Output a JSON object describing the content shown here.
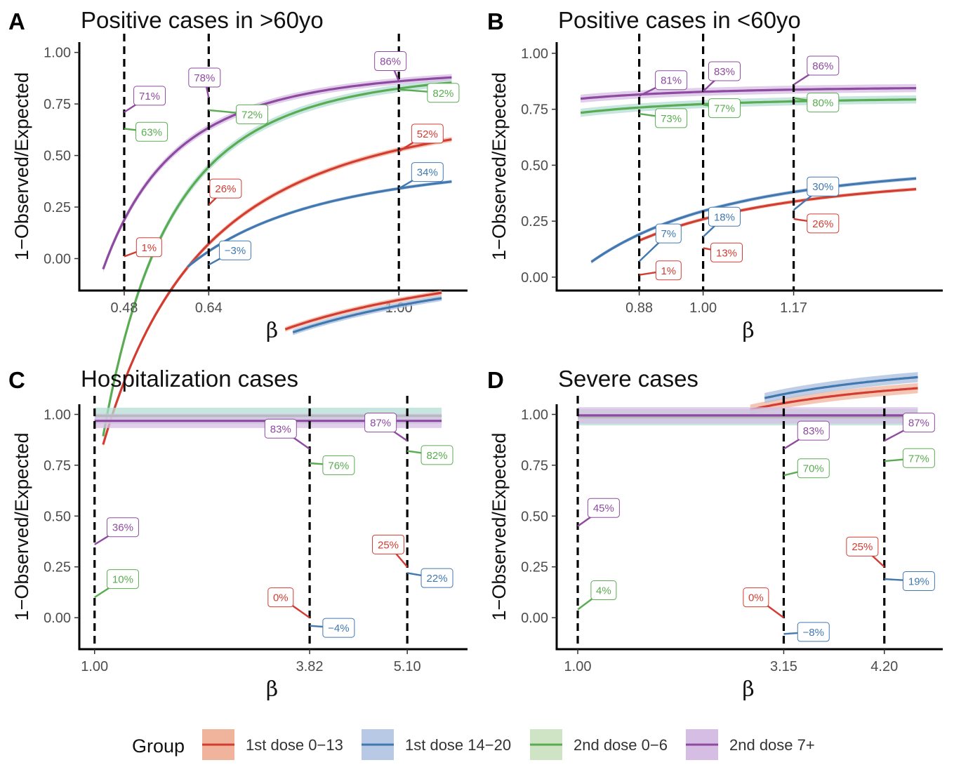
{
  "colors": {
    "g1": "#d23c32",
    "g2": "#4178b0",
    "g3": "#5aac52",
    "g4": "#8e4aa0",
    "band1": "#f0b49c",
    "band2": "#a8bedd",
    "band3": "#b3ded4",
    "band4": "#d6bde3"
  },
  "legend": {
    "title": "Group",
    "items": [
      {
        "name": "1st dose 0−13",
        "line": "#d23c32",
        "fill": "#f0b49c"
      },
      {
        "name": "1st dose 14−20",
        "line": "#4178b0",
        "fill": "#b7c9e4"
      },
      {
        "name": "2nd dose 0−6",
        "line": "#5aac52",
        "fill": "#cfe4c4"
      },
      {
        "name": "2nd dose 7+",
        "line": "#8e4aa0",
        "fill": "#d6bde3"
      }
    ]
  },
  "chart_data": [
    {
      "type": "line",
      "letter": "A",
      "title": "Positive cases in >60yo",
      "xlabel": "β",
      "ylabel": "1−Observed/Expected",
      "xlim": [
        0.395,
        1.13
      ],
      "ylim": [
        -0.155,
        1.05
      ],
      "xticks": [
        0.48,
        0.64,
        1.0
      ],
      "xtick_labels": [
        "0.48",
        "0.64",
        "1.00"
      ],
      "yticks": [
        0,
        0.25,
        0.5,
        0.75,
        1.0
      ],
      "ytick_labels": [
        "0.00",
        "0.25",
        "0.50",
        "0.75",
        "1.00"
      ],
      "vlines": [
        0.48,
        0.64,
        1.0
      ],
      "series": [
        {
          "group": 0,
          "curve": {
            "a": 0.528,
            "b": 0.255,
            "c": 2.3
          },
          "x_range": [
            0.44,
            1.1
          ],
          "band": 0.012
        },
        {
          "group": 1,
          "curve": {
            "a": 0.34,
            "b": 0.17,
            "c": 2.3
          },
          "x_range": [
            0.6,
            1.1
          ],
          "band": 0.008
        },
        {
          "group": 2,
          "curve": {
            "a": 0.825,
            "b": 0.101,
            "c": 3.5
          },
          "x_range": [
            0.44,
            1.1
          ],
          "band": 0.018
        },
        {
          "group": 3,
          "curve": {
            "a": 0.86,
            "b": 0.071,
            "c": 3.2
          },
          "x_range": [
            0.44,
            1.1
          ],
          "band": 0.016
        }
      ],
      "labels": [
        {
          "text": "1%",
          "group": 0,
          "x": 0.48,
          "y": 0.01,
          "lx": 0.527,
          "ly": 0.055
        },
        {
          "text": "26%",
          "group": 0,
          "x": 0.64,
          "y": 0.26,
          "lx": 0.672,
          "ly": 0.34
        },
        {
          "text": "52%",
          "group": 0,
          "x": 1.0,
          "y": 0.52,
          "lx": 1.054,
          "ly": 0.606
        },
        {
          "text": "−3%",
          "group": 1,
          "x": 0.64,
          "y": -0.03,
          "lx": 0.69,
          "ly": 0.04
        },
        {
          "text": "34%",
          "group": 1,
          "x": 1.0,
          "y": 0.34,
          "lx": 1.054,
          "ly": 0.42
        },
        {
          "text": "63%",
          "group": 2,
          "x": 0.48,
          "y": 0.63,
          "lx": 0.532,
          "ly": 0.615
        },
        {
          "text": "72%",
          "group": 2,
          "x": 0.64,
          "y": 0.72,
          "lx": 0.722,
          "ly": 0.7
        },
        {
          "text": "82%",
          "group": 2,
          "x": 1.0,
          "y": 0.82,
          "lx": 1.084,
          "ly": 0.804
        },
        {
          "text": "71%",
          "group": 3,
          "x": 0.48,
          "y": 0.71,
          "lx": 0.528,
          "ly": 0.79
        },
        {
          "text": "78%",
          "group": 3,
          "x": 0.64,
          "y": 0.78,
          "lx": 0.632,
          "ly": 0.878
        },
        {
          "text": "86%",
          "group": 3,
          "x": 1.0,
          "y": 0.86,
          "lx": 0.984,
          "ly": 0.958
        }
      ]
    },
    {
      "type": "line",
      "letter": "B",
      "title": "Positive cases in <60yo",
      "xlabel": "β",
      "ylabel": "1−Observed/Expected",
      "xlim": [
        0.725,
        1.45
      ],
      "ylim": [
        -0.06,
        1.05
      ],
      "xticks": [
        0.88,
        1.0,
        1.17
      ],
      "xtick_labels": [
        "0.88",
        "1.00",
        "1.17"
      ],
      "yticks": [
        0,
        0.25,
        0.5,
        0.75,
        1.0
      ],
      "ytick_labels": [
        "0.00",
        "0.25",
        "0.50",
        "0.75",
        "1.00"
      ],
      "vlines": [
        0.88,
        1.0,
        1.17
      ],
      "series": [
        {
          "group": 0,
          "curve": {
            "a": 0.259,
            "b": 0.217,
            "c": 2.86
          },
          "x_range": [
            0.88,
            1.4
          ],
          "band": 0.008
        },
        {
          "group": 1,
          "curve": {
            "a": 0.295,
            "b": 0.236,
            "c": 2.86
          },
          "x_range": [
            0.79,
            1.4
          ],
          "band": 0.008
        },
        {
          "group": 2,
          "curve": {
            "a": 0.773,
            "b": 0.0326,
            "c": 3.0
          },
          "x_range": [
            0.77,
            1.4
          ],
          "band": 0.018
        },
        {
          "group": 3,
          "curve": {
            "a": 0.828,
            "b": 0.0258,
            "c": 3.0
          },
          "x_range": [
            0.77,
            1.4
          ],
          "band": 0.018
        }
      ],
      "labels": [
        {
          "text": "1%",
          "group": 0,
          "x": 0.88,
          "y": 0.01,
          "lx": 0.935,
          "ly": 0.03
        },
        {
          "text": "13%",
          "group": 0,
          "x": 1.0,
          "y": 0.13,
          "lx": 1.044,
          "ly": 0.11
        },
        {
          "text": "26%",
          "group": 0,
          "x": 1.17,
          "y": 0.26,
          "lx": 1.225,
          "ly": 0.24
        },
        {
          "text": "7%",
          "group": 1,
          "x": 0.88,
          "y": 0.07,
          "lx": 0.935,
          "ly": 0.195
        },
        {
          "text": "18%",
          "group": 1,
          "x": 1.0,
          "y": 0.18,
          "lx": 1.04,
          "ly": 0.27
        },
        {
          "text": "30%",
          "group": 1,
          "x": 1.17,
          "y": 0.3,
          "lx": 1.225,
          "ly": 0.405
        },
        {
          "text": "73%",
          "group": 2,
          "x": 0.88,
          "y": 0.73,
          "lx": 0.94,
          "ly": 0.71
        },
        {
          "text": "77%",
          "group": 2,
          "x": 1.0,
          "y": 0.77,
          "lx": 1.04,
          "ly": 0.755
        },
        {
          "text": "80%",
          "group": 2,
          "x": 1.17,
          "y": 0.8,
          "lx": 1.225,
          "ly": 0.78
        },
        {
          "text": "81%",
          "group": 3,
          "x": 0.88,
          "y": 0.81,
          "lx": 0.94,
          "ly": 0.88
        },
        {
          "text": "83%",
          "group": 3,
          "x": 1.0,
          "y": 0.83,
          "lx": 1.04,
          "ly": 0.92
        },
        {
          "text": "86%",
          "group": 3,
          "x": 1.17,
          "y": 0.86,
          "lx": 1.225,
          "ly": 0.945
        }
      ]
    },
    {
      "type": "line",
      "letter": "C",
      "title": "Hospitalization cases",
      "xlabel": "β",
      "ylabel": "1−Observed/Expected",
      "xlim": [
        0.8,
        5.89
      ],
      "ylim": [
        -0.155,
        1.05
      ],
      "xticks": [
        1.0,
        3.82,
        5.1
      ],
      "xtick_labels": [
        "1.00",
        "3.82",
        "5.10"
      ],
      "yticks": [
        0,
        0.25,
        0.5,
        0.75,
        1.0
      ],
      "ytick_labels": [
        "0.00",
        "0.25",
        "0.50",
        "0.75",
        "1.00"
      ],
      "vlines": [
        1.0,
        3.82,
        5.1
      ],
      "series": [
        {
          "group": 0,
          "curve": {
            "a": 0.415,
            "b": 1.586,
            "c": 0.8
          },
          "x_range": [
            3.5,
            5.55
          ],
          "band": 0.012
        },
        {
          "group": 1,
          "curve": {
            "a": 0.378,
            "b": 1.6,
            "c": 0.8
          },
          "x_range": [
            3.6,
            5.55
          ],
          "band": 0.014
        },
        {
          "group": 2,
          "curve": {
            "a": 0.993,
            "b": 0.89,
            "c": 0.0
          },
          "x_range": [
            1.0,
            5.55
          ],
          "band": 0.04
        },
        {
          "group": 3,
          "curve": {
            "a": 0.968,
            "b": 0.608,
            "c": 0.0
          },
          "x_range": [
            1.0,
            5.55
          ],
          "band": 0.035
        }
      ],
      "labels": [
        {
          "text": "0%",
          "group": 0,
          "x": 3.82,
          "y": 0.0,
          "lx": 3.44,
          "ly": 0.1
        },
        {
          "text": "25%",
          "group": 0,
          "x": 5.1,
          "y": 0.25,
          "lx": 4.85,
          "ly": 0.36
        },
        {
          "text": "−4%",
          "group": 1,
          "x": 3.82,
          "y": -0.04,
          "lx": 4.2,
          "ly": -0.05
        },
        {
          "text": "22%",
          "group": 1,
          "x": 5.1,
          "y": 0.22,
          "lx": 5.49,
          "ly": 0.195
        },
        {
          "text": "10%",
          "group": 2,
          "x": 1.0,
          "y": 0.1,
          "lx": 1.37,
          "ly": 0.19
        },
        {
          "text": "76%",
          "group": 2,
          "x": 3.82,
          "y": 0.76,
          "lx": 4.2,
          "ly": 0.75
        },
        {
          "text": "82%",
          "group": 2,
          "x": 5.1,
          "y": 0.82,
          "lx": 5.49,
          "ly": 0.8
        },
        {
          "text": "36%",
          "group": 3,
          "x": 1.0,
          "y": 0.36,
          "lx": 1.37,
          "ly": 0.445
        },
        {
          "text": "83%",
          "group": 3,
          "x": 3.82,
          "y": 0.83,
          "lx": 3.44,
          "ly": 0.93
        },
        {
          "text": "87%",
          "group": 3,
          "x": 5.1,
          "y": 0.87,
          "lx": 4.75,
          "ly": 0.96
        }
      ]
    },
    {
      "type": "line",
      "letter": "D",
      "title": "Severe cases",
      "xlabel": "β",
      "ylabel": "1−Observed/Expected",
      "xlim": [
        0.78,
        4.81
      ],
      "ylim": [
        -0.155,
        1.05
      ],
      "xticks": [
        1.0,
        3.15,
        4.2
      ],
      "xtick_labels": [
        "1.00",
        "3.15",
        "4.20"
      ],
      "yticks": [
        0,
        0.25,
        0.5,
        0.75,
        1.0
      ],
      "ytick_labels": [
        "0.00",
        "0.25",
        "0.50",
        "0.75",
        "1.00"
      ],
      "vlines": [
        1.0,
        3.15,
        4.2
      ],
      "series": [
        {
          "group": 0,
          "curve": {
            "a": 0.3856,
            "b": 0.864,
            "c": 1.3
          },
          "x_range": [
            2.8,
            4.55
          ],
          "band": 0.025
        },
        {
          "group": 1,
          "curve": {
            "a": 0.3434,
            "b": 0.976,
            "c": 1.3
          },
          "x_range": [
            2.95,
            4.55
          ],
          "band": 0.025
        },
        {
          "group": 2,
          "curve": {
            "a": 0.986,
            "b": 0.946,
            "c": 0.0
          },
          "x_range": [
            1.0,
            4.55
          ],
          "band": 0.04
        },
        {
          "group": 3,
          "curve": {
            "a": 0.995,
            "b": 0.545,
            "c": 0.0
          },
          "x_range": [
            1.0,
            4.55
          ],
          "band": 0.04
        }
      ],
      "labels": [
        {
          "text": "0%",
          "group": 0,
          "x": 3.15,
          "y": 0.0,
          "lx": 2.86,
          "ly": 0.1
        },
        {
          "text": "25%",
          "group": 0,
          "x": 4.2,
          "y": 0.25,
          "lx": 3.97,
          "ly": 0.35
        },
        {
          "text": "−8%",
          "group": 1,
          "x": 3.15,
          "y": -0.08,
          "lx": 3.46,
          "ly": -0.07
        },
        {
          "text": "19%",
          "group": 1,
          "x": 4.2,
          "y": 0.19,
          "lx": 4.56,
          "ly": 0.18
        },
        {
          "text": "4%",
          "group": 2,
          "x": 1.0,
          "y": 0.04,
          "lx": 1.27,
          "ly": 0.135
        },
        {
          "text": "70%",
          "group": 2,
          "x": 3.15,
          "y": 0.7,
          "lx": 3.46,
          "ly": 0.735
        },
        {
          "text": "77%",
          "group": 2,
          "x": 4.2,
          "y": 0.77,
          "lx": 4.56,
          "ly": 0.785
        },
        {
          "text": "45%",
          "group": 3,
          "x": 1.0,
          "y": 0.45,
          "lx": 1.27,
          "ly": 0.54
        },
        {
          "text": "83%",
          "group": 3,
          "x": 3.15,
          "y": 0.83,
          "lx": 3.46,
          "ly": 0.92
        },
        {
          "text": "87%",
          "group": 3,
          "x": 4.2,
          "y": 0.87,
          "lx": 4.56,
          "ly": 0.96
        }
      ]
    }
  ]
}
